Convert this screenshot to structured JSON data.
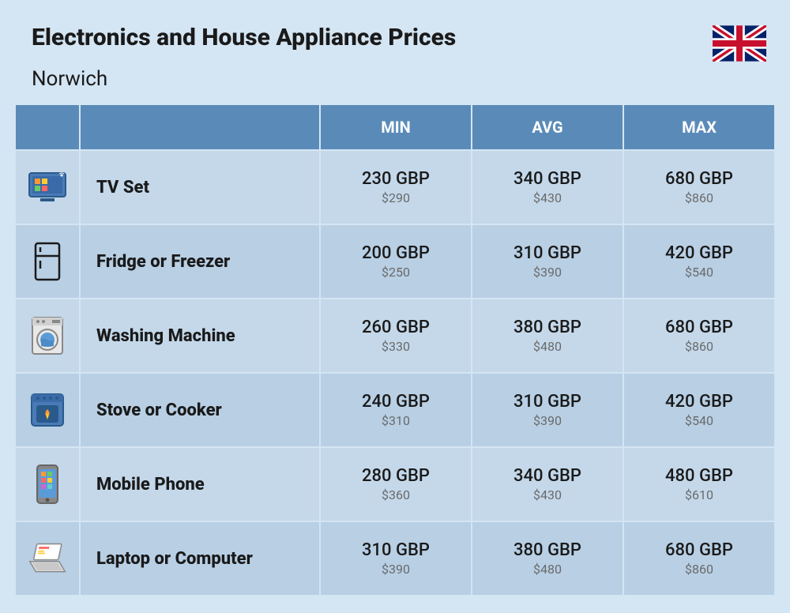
{
  "header": {
    "title": "Electronics and House Appliance Prices",
    "subtitle": "Norwich"
  },
  "table_headers": {
    "min": "MIN",
    "avg": "AVG",
    "max": "MAX"
  },
  "colors": {
    "background": "#d4e5f3",
    "header_bg": "#5a8bb8",
    "header_text": "#ffffff",
    "row_odd": "#c4d8ea",
    "row_even": "#b8cfe4",
    "text_main": "#1a1a1a",
    "text_sub": "#6a6a6a"
  },
  "rows": [
    {
      "name": "TV Set",
      "icon": "tv-icon",
      "min_gbp": "230 GBP",
      "min_usd": "$290",
      "avg_gbp": "340 GBP",
      "avg_usd": "$430",
      "max_gbp": "680 GBP",
      "max_usd": "$860"
    },
    {
      "name": "Fridge or Freezer",
      "icon": "fridge-icon",
      "min_gbp": "200 GBP",
      "min_usd": "$250",
      "avg_gbp": "310 GBP",
      "avg_usd": "$390",
      "max_gbp": "420 GBP",
      "max_usd": "$540"
    },
    {
      "name": "Washing Machine",
      "icon": "washer-icon",
      "min_gbp": "260 GBP",
      "min_usd": "$330",
      "avg_gbp": "380 GBP",
      "avg_usd": "$480",
      "max_gbp": "680 GBP",
      "max_usd": "$860"
    },
    {
      "name": "Stove or Cooker",
      "icon": "stove-icon",
      "min_gbp": "240 GBP",
      "min_usd": "$310",
      "avg_gbp": "310 GBP",
      "avg_usd": "$390",
      "max_gbp": "420 GBP",
      "max_usd": "$540"
    },
    {
      "name": "Mobile Phone",
      "icon": "phone-icon",
      "min_gbp": "280 GBP",
      "min_usd": "$360",
      "avg_gbp": "340 GBP",
      "avg_usd": "$430",
      "max_gbp": "480 GBP",
      "max_usd": "$610"
    },
    {
      "name": "Laptop or Computer",
      "icon": "laptop-icon",
      "min_gbp": "310 GBP",
      "min_usd": "$390",
      "avg_gbp": "380 GBP",
      "avg_usd": "$480",
      "max_gbp": "680 GBP",
      "max_usd": "$860"
    }
  ]
}
